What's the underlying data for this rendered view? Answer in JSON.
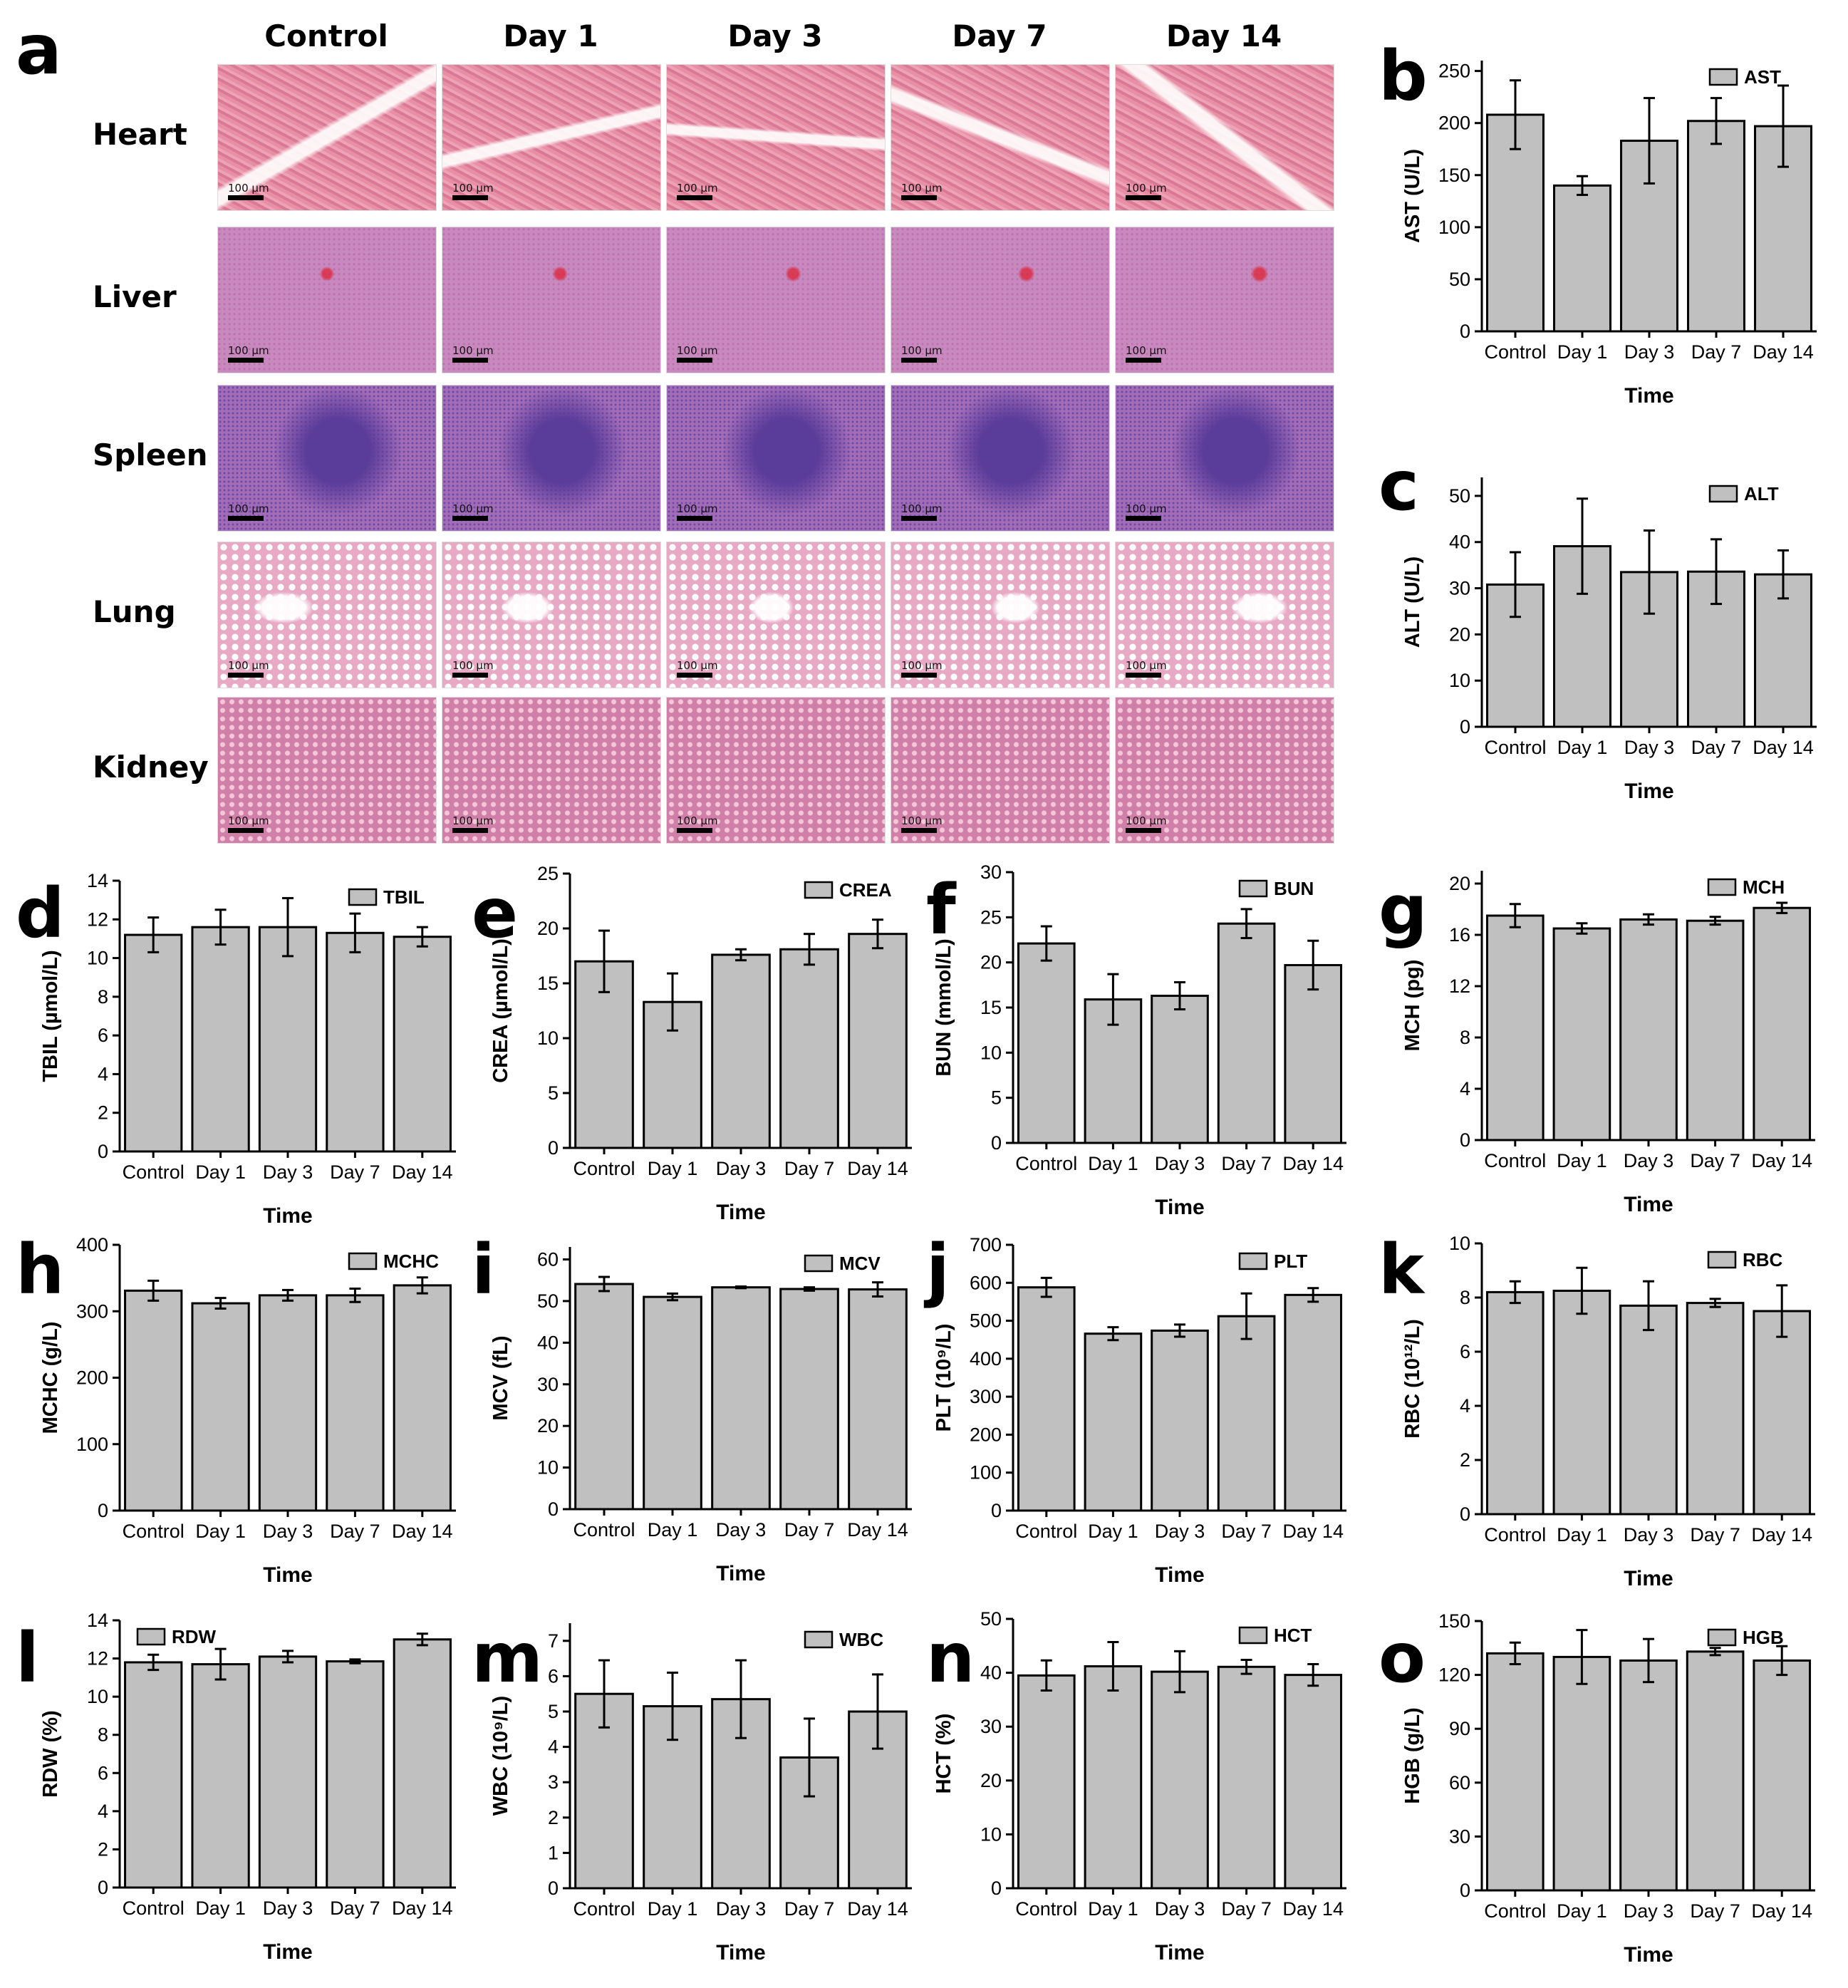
{
  "histology": {
    "panel_letter": "a",
    "columns": [
      "Control",
      "Day 1",
      "Day 3",
      "Day 7",
      "Day 14"
    ],
    "rows": [
      "Heart",
      "Liver",
      "Spleen",
      "Lung",
      "Kidney"
    ],
    "scale_label": "100 µm"
  },
  "chart_data": [
    {
      "panel": "b",
      "type": "bar",
      "categories": [
        "Control",
        "Day 1",
        "Day 3",
        "Day 7",
        "Day 14"
      ],
      "values": [
        208,
        140,
        183,
        202,
        197
      ],
      "errors": [
        33,
        9,
        41,
        22,
        39
      ],
      "ylabel": "AST (U/L)",
      "xlabel": "Time",
      "legend": "AST",
      "ylim": [
        0,
        260
      ],
      "yticks": [
        0,
        50,
        100,
        150,
        200,
        250
      ],
      "legend_position": "top-right"
    },
    {
      "panel": "c",
      "type": "bar",
      "categories": [
        "Control",
        "Day 1",
        "Day 3",
        "Day 7",
        "Day 14"
      ],
      "values": [
        30.8,
        39.1,
        33.5,
        33.6,
        33.0
      ],
      "errors": [
        7.0,
        10.3,
        9.0,
        7.0,
        5.2
      ],
      "ylabel": "ALT (U/L)",
      "xlabel": "Time",
      "legend": "ALT",
      "ylim": [
        0,
        54
      ],
      "yticks": [
        0,
        10,
        20,
        30,
        40,
        50
      ],
      "legend_position": "top-right"
    },
    {
      "panel": "d",
      "type": "bar",
      "categories": [
        "Control",
        "Day 1",
        "Day 3",
        "Day 7",
        "Day 14"
      ],
      "values": [
        11.2,
        11.6,
        11.6,
        11.3,
        11.1
      ],
      "errors": [
        0.9,
        0.9,
        1.5,
        1.0,
        0.5
      ],
      "ylabel": "TBIL (µmol/L)",
      "xlabel": "Time",
      "legend": "TBIL",
      "ylim": [
        0,
        14
      ],
      "yticks": [
        0,
        2,
        4,
        6,
        8,
        10,
        12,
        14
      ],
      "legend_position": "top-right"
    },
    {
      "panel": "e",
      "type": "bar",
      "categories": [
        "Control",
        "Day 1",
        "Day 3",
        "Day 7",
        "Day 14"
      ],
      "values": [
        17.0,
        13.3,
        17.6,
        18.1,
        19.5
      ],
      "errors": [
        2.8,
        2.6,
        0.5,
        1.4,
        1.3
      ],
      "ylabel": "CREA (µmol/L)",
      "xlabel": "Time",
      "legend": "CREA",
      "ylim": [
        0,
        25
      ],
      "yticks": [
        0,
        5,
        10,
        15,
        20,
        25
      ],
      "legend_position": "top-right"
    },
    {
      "panel": "f",
      "type": "bar",
      "categories": [
        "Control",
        "Day 1",
        "Day 3",
        "Day 7",
        "Day 14"
      ],
      "values": [
        22.1,
        15.9,
        16.3,
        24.3,
        19.7
      ],
      "errors": [
        1.9,
        2.8,
        1.5,
        1.6,
        2.7
      ],
      "ylabel": "BUN (mmol/L)",
      "xlabel": "Time",
      "legend": "BUN",
      "ylim": [
        0,
        30
      ],
      "yticks": [
        0,
        5,
        10,
        15,
        20,
        25,
        30
      ],
      "legend_position": "top-right"
    },
    {
      "panel": "g",
      "type": "bar",
      "categories": [
        "Control",
        "Day 1",
        "Day 3",
        "Day 7",
        "Day 14"
      ],
      "values": [
        17.5,
        16.5,
        17.2,
        17.1,
        18.1
      ],
      "errors": [
        0.9,
        0.4,
        0.4,
        0.3,
        0.4
      ],
      "ylabel": "MCH (pg)",
      "xlabel": "Time",
      "legend": "MCH",
      "ylim": [
        0,
        21
      ],
      "yticks": [
        0,
        4,
        8,
        12,
        16,
        20
      ],
      "legend_position": "top-right"
    },
    {
      "panel": "h",
      "type": "bar",
      "categories": [
        "Control",
        "Day 1",
        "Day 3",
        "Day 7",
        "Day 14"
      ],
      "values": [
        331,
        312,
        324,
        324,
        339
      ],
      "errors": [
        15,
        8,
        8,
        10,
        12
      ],
      "ylabel": "MCHC (g/L)",
      "xlabel": "Time",
      "legend": "MCHC",
      "ylim": [
        0,
        400
      ],
      "yticks": [
        0,
        100,
        200,
        300,
        400
      ],
      "legend_position": "top-right"
    },
    {
      "panel": "i",
      "type": "bar",
      "categories": [
        "Control",
        "Day 1",
        "Day 3",
        "Day 7",
        "Day 14"
      ],
      "values": [
        54.1,
        51.0,
        53.3,
        52.9,
        52.8
      ],
      "errors": [
        1.7,
        0.8,
        0.2,
        0.4,
        1.7
      ],
      "ylabel": "MCV (fL)",
      "xlabel": "Time",
      "legend": "MCV",
      "ylim": [
        0,
        63
      ],
      "yticks": [
        0,
        10,
        20,
        30,
        40,
        50,
        60
      ],
      "legend_position": "top-right"
    },
    {
      "panel": "j",
      "type": "bar",
      "categories": [
        "Control",
        "Day 1",
        "Day 3",
        "Day 7",
        "Day 14"
      ],
      "values": [
        588,
        466,
        474,
        512,
        568
      ],
      "errors": [
        25,
        17,
        16,
        60,
        18
      ],
      "ylabel": "PLT (10⁹/L)",
      "xlabel": "Time",
      "legend": "PLT",
      "ylim": [
        0,
        700
      ],
      "yticks": [
        0,
        100,
        200,
        300,
        400,
        500,
        600,
        700
      ],
      "legend_position": "top-right"
    },
    {
      "panel": "k",
      "type": "bar",
      "categories": [
        "Control",
        "Day 1",
        "Day 3",
        "Day 7",
        "Day 14"
      ],
      "values": [
        8.2,
        8.25,
        7.7,
        7.8,
        7.5
      ],
      "errors": [
        0.4,
        0.85,
        0.9,
        0.15,
        0.95
      ],
      "ylabel": "RBC (10¹²/L)",
      "xlabel": "Time",
      "legend": "RBC",
      "ylim": [
        0,
        10
      ],
      "yticks": [
        0,
        2,
        4,
        6,
        8,
        10
      ],
      "legend_position": "top-right"
    },
    {
      "panel": "l",
      "type": "bar",
      "categories": [
        "Control",
        "Day 1",
        "Day 3",
        "Day 7",
        "Day 14"
      ],
      "values": [
        11.8,
        11.7,
        12.1,
        11.85,
        13.0
      ],
      "errors": [
        0.4,
        0.8,
        0.3,
        0.1,
        0.3
      ],
      "ylabel": "RDW (%)",
      "xlabel": "Time",
      "legend": "RDW",
      "ylim": [
        0,
        14
      ],
      "yticks": [
        0,
        2,
        4,
        6,
        8,
        10,
        12,
        14
      ],
      "legend_position": "top-left"
    },
    {
      "panel": "m",
      "type": "bar",
      "categories": [
        "Control",
        "Day 1",
        "Day 3",
        "Day 7",
        "Day 14"
      ],
      "values": [
        5.5,
        5.15,
        5.35,
        3.7,
        5.0
      ],
      "errors": [
        0.95,
        0.95,
        1.1,
        1.1,
        1.05
      ],
      "ylabel": "WBC (10⁹/L)",
      "xlabel": "Time",
      "legend": "WBC",
      "ylim": [
        0,
        7.5
      ],
      "yticks": [
        0,
        1,
        2,
        3,
        4,
        5,
        6,
        7
      ],
      "legend_position": "top-right"
    },
    {
      "panel": "n",
      "type": "bar",
      "categories": [
        "Control",
        "Day 1",
        "Day 3",
        "Day 7",
        "Day 14"
      ],
      "values": [
        39.5,
        41.2,
        40.2,
        41.1,
        39.6
      ],
      "errors": [
        2.8,
        4.5,
        3.8,
        1.3,
        2.0
      ],
      "ylabel": "HCT (%)",
      "xlabel": "Time",
      "legend": "HCT",
      "ylim": [
        0,
        50
      ],
      "yticks": [
        0,
        10,
        20,
        30,
        40,
        50
      ],
      "legend_position": "top-right"
    },
    {
      "panel": "o",
      "type": "bar",
      "categories": [
        "Control",
        "Day 1",
        "Day 3",
        "Day 7",
        "Day 14"
      ],
      "values": [
        132,
        130,
        128,
        133,
        128
      ],
      "errors": [
        6,
        15,
        12,
        2,
        8
      ],
      "ylabel": "HGB (g/L)",
      "xlabel": "Time",
      "legend": "HGB",
      "ylim": [
        0,
        150
      ],
      "yticks": [
        0,
        30,
        60,
        90,
        120,
        150
      ],
      "legend_position": "top-right"
    }
  ]
}
